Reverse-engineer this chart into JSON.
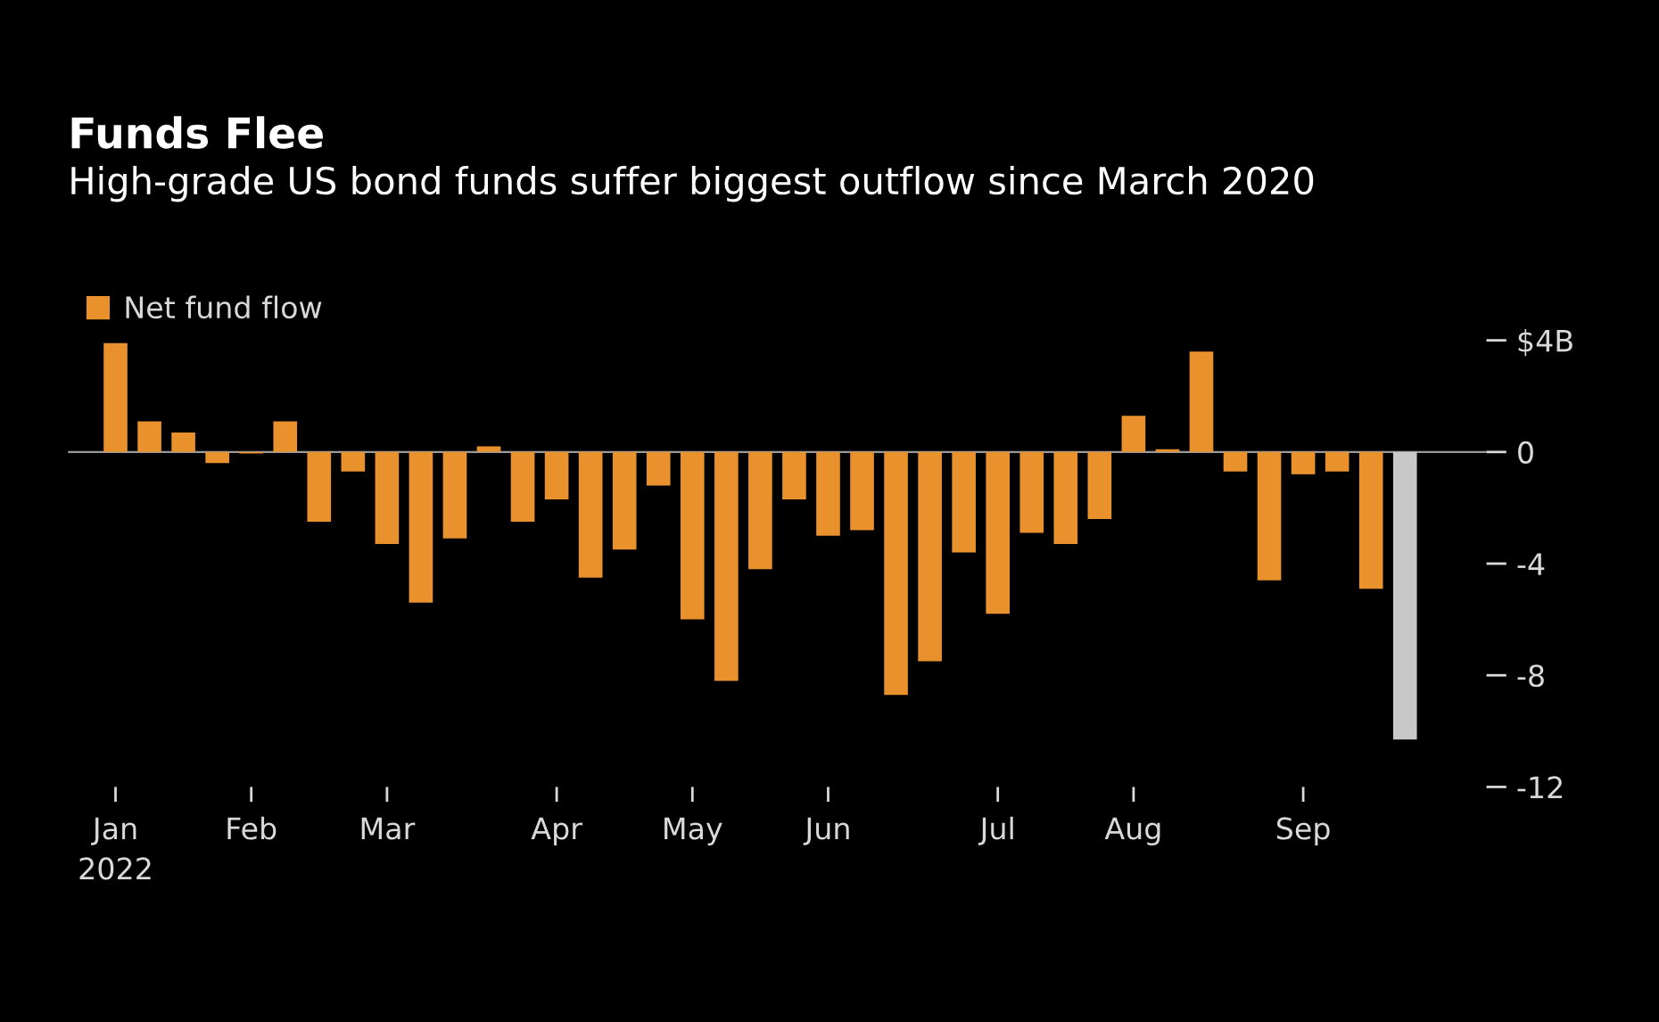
{
  "chart_data": {
    "type": "bar",
    "title": "Funds Flee",
    "subtitle": "High-grade US bond funds suffer biggest outflow since March 2020",
    "categories": [
      "Jan\n2022",
      null,
      null,
      null,
      "Feb",
      null,
      null,
      null,
      "Mar",
      null,
      null,
      null,
      null,
      "Apr",
      null,
      null,
      null,
      "May",
      null,
      null,
      null,
      "Jun",
      null,
      null,
      null,
      null,
      "Jul",
      null,
      null,
      null,
      "Aug",
      null,
      null,
      null,
      null,
      "Sep",
      null,
      null,
      null
    ],
    "series": [
      {
        "name": "Net fund flow",
        "color": "#e8912d",
        "values": [
          3.9,
          1.1,
          0.7,
          -0.4,
          -0.05,
          1.1,
          -2.5,
          -0.7,
          -3.3,
          -5.4,
          -3.1,
          0.2,
          -2.5,
          -1.7,
          -4.5,
          -3.5,
          -1.2,
          -6.0,
          -8.2,
          -4.2,
          -1.7,
          -3.0,
          -2.8,
          -8.7,
          -7.5,
          -3.6,
          -5.8,
          -2.9,
          -3.3,
          -2.4,
          1.3,
          0.1,
          3.6,
          -0.7,
          -4.6,
          -0.8,
          -0.7,
          -4.9,
          -10.3
        ],
        "colors": [
          "#e8912d",
          "#e8912d",
          "#e8912d",
          "#e8912d",
          "#e8912d",
          "#e8912d",
          "#e8912d",
          "#e8912d",
          "#e8912d",
          "#e8912d",
          "#e8912d",
          "#e8912d",
          "#e8912d",
          "#e8912d",
          "#e8912d",
          "#e8912d",
          "#e8912d",
          "#e8912d",
          "#e8912d",
          "#e8912d",
          "#e8912d",
          "#e8912d",
          "#e8912d",
          "#e8912d",
          "#e8912d",
          "#e8912d",
          "#e8912d",
          "#e8912d",
          "#e8912d",
          "#e8912d",
          "#e8912d",
          "#e8912d",
          "#e8912d",
          "#e8912d",
          "#e8912d",
          "#e8912d",
          "#e8912d",
          "#e8912d",
          "#c8c8c8"
        ]
      }
    ],
    "ylim": [
      -12,
      4
    ],
    "yticks": [
      {
        "value": 4,
        "label": "$4B"
      },
      0,
      -4,
      -8,
      -12
    ],
    "ref_lines": [
      {
        "axis": "y",
        "value": 0,
        "color": "#9a9a9a"
      }
    ],
    "grid": false,
    "legend": "top left"
  }
}
